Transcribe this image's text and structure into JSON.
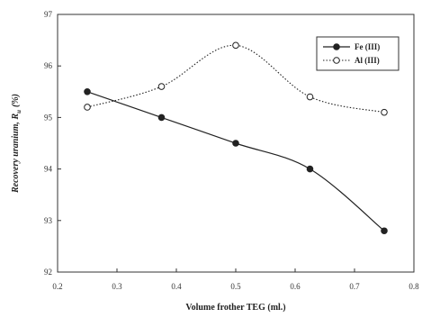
{
  "chart_data": {
    "type": "line",
    "title": "",
    "xlabel": "Volume frother TEG (ml.)",
    "ylabel": "Recovery uranium, R",
    "ylabel_subscript": "u",
    "ylabel_unit": "(%)",
    "xlim": [
      0.2,
      0.8
    ],
    "ylim": [
      92,
      97
    ],
    "x_tick_labels": [
      "0.2",
      "0.3",
      "0.4",
      "0.5",
      "0.6",
      "0.7",
      "0.8"
    ],
    "y_tick_labels": [
      "92",
      "93",
      "94",
      "95",
      "96",
      "97"
    ],
    "grid": false,
    "legend_position": "top-right",
    "x": [
      0.25,
      0.375,
      0.5,
      0.625,
      0.75
    ],
    "series": [
      {
        "name": "Fe (III)",
        "values": [
          95.5,
          95.0,
          94.5,
          94.0,
          92.8
        ],
        "line_style": "solid",
        "marker": "filled-circle",
        "color": "#222222"
      },
      {
        "name": "Al (III)",
        "values": [
          95.2,
          95.6,
          96.4,
          95.4,
          95.1
        ],
        "line_style": "dotted",
        "marker": "open-circle",
        "color": "#222222"
      }
    ]
  }
}
